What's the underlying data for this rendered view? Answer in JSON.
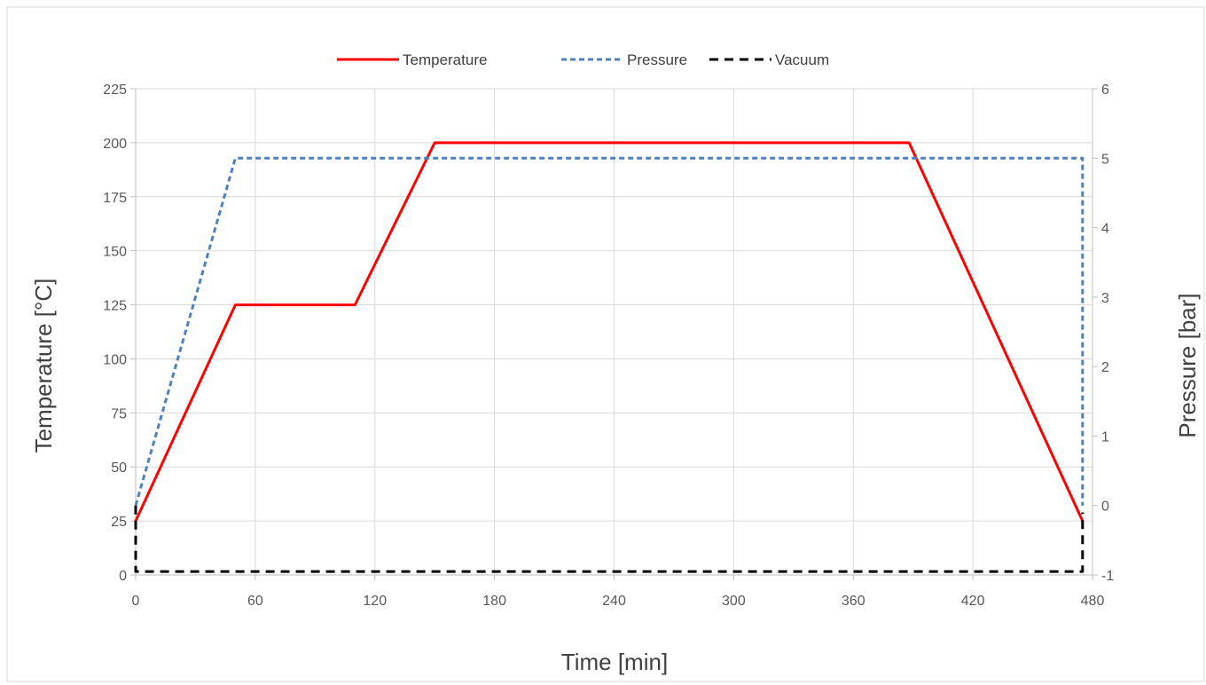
{
  "chart_data": {
    "type": "line",
    "xlabel": "Time [min]",
    "ylabel": "Temperature [°C]",
    "y2label": "Pressure [bar]",
    "xlim": [
      0,
      480
    ],
    "ylim": [
      0,
      225
    ],
    "y2lim": [
      -1,
      6
    ],
    "xticks": [
      0,
      60,
      120,
      180,
      240,
      300,
      360,
      420,
      480
    ],
    "yticks": [
      0,
      25,
      50,
      75,
      100,
      125,
      150,
      175,
      200,
      225
    ],
    "y2ticks": [
      -1,
      0,
      1,
      2,
      3,
      4,
      5,
      6
    ],
    "grid": true,
    "legend": "top-center",
    "series": [
      {
        "name": "Temperature",
        "axis": "left",
        "color": "#ff0000",
        "style": "solid",
        "x": [
          0,
          50,
          110,
          150,
          388,
          475
        ],
        "y": [
          25,
          125,
          125,
          200,
          200,
          25
        ]
      },
      {
        "name": "Pressure",
        "axis": "right",
        "color": "#4f81bd",
        "style": "dashed",
        "x": [
          0,
          50,
          475,
          475
        ],
        "y": [
          0,
          5,
          5,
          0
        ]
      },
      {
        "name": "Vacuum",
        "axis": "right",
        "color": "#000000",
        "style": "dashed",
        "x": [
          0,
          0,
          475,
          475
        ],
        "y": [
          0,
          -0.95,
          -0.95,
          -0.1
        ]
      }
    ]
  }
}
